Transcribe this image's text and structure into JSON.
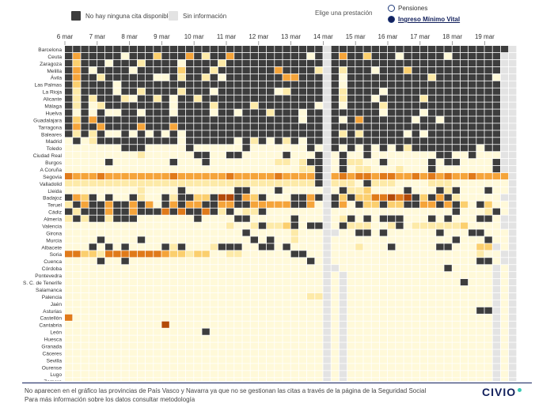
{
  "legend": {
    "no_slots_label": "No hay ninguna cita disponible",
    "no_slots_color": "#3d3d3d",
    "no_info_label": "Sin información",
    "no_info_color": "#e3e3e3"
  },
  "selector": {
    "title": "Elige una prestación",
    "options": [
      {
        "label": "Pensiones",
        "selected": false
      },
      {
        "label": "Ingreso Mínimo Vital",
        "selected": true
      }
    ]
  },
  "footer": {
    "note_line1": "No aparecen en el gráfico las provincias de País Vasco y Navarra ya que no se gestionan las citas a través de la página de la Seguridad Social",
    "note_line2": "Para más información sobre los datos consultar metodología",
    "logo": "CIVIO"
  },
  "chart_data": {
    "type": "heatmap",
    "x_labels": [
      {
        "label": "6 mar",
        "index": 0
      },
      {
        "label": "7 mar",
        "index": 4
      },
      {
        "label": "8 mar",
        "index": 8
      },
      {
        "label": "9 mar",
        "index": 12
      },
      {
        "label": "10 mar",
        "index": 16
      },
      {
        "label": "11 mar",
        "index": 20
      },
      {
        "label": "12 mar",
        "index": 24
      },
      {
        "label": "13 mar",
        "index": 28
      },
      {
        "label": "14 mar",
        "index": 32
      },
      {
        "label": "15 mar",
        "index": 36
      },
      {
        "label": "16 mar",
        "index": 40
      },
      {
        "label": "17 mar",
        "index": 44
      },
      {
        "label": "18 mar",
        "index": 48
      },
      {
        "label": "19 mar",
        "index": 52
      }
    ],
    "n_columns": 56,
    "no_info_columns": [
      32,
      55
    ],
    "rows": [
      "Barcelona",
      "Ceuta",
      "Zaragoza",
      "Melilla",
      "Ávila",
      "Las Palmas",
      "La Rioja",
      "Alicante",
      "Málaga",
      "Huelva",
      "Guadalajara",
      "Tarragona",
      "Baleares",
      "Madrid",
      "Toledo",
      "Ciudad Real",
      "Burgos",
      "A Coruña",
      "Segovia",
      "Valladolid",
      "Lleida",
      "Badajoz",
      "Teruel",
      "Cádiz",
      "Almería",
      "Valencia",
      "Girona",
      "Murcia",
      "Albacete",
      "Soria",
      "Cuenca",
      "Córdoba",
      "Pontevedra",
      "S. C. de Tenerife",
      "Salamanca",
      "Palencia",
      "Jaén",
      "Asturias",
      "Castellón",
      "Cantabria",
      "León",
      "Huesca",
      "Granada",
      "Cáceres",
      "Sevilla",
      "Ourense",
      "Lugo",
      "Zamora"
    ],
    "palette": [
      "#fff9d9",
      "#fdeaa8",
      "#fbcf6e",
      "#f5a43a",
      "#e07a1a",
      "#b34a08",
      "#6e2200"
    ],
    "no_slots_color": "#3d3d3d",
    "no_info_color": "#e3e3e3",
    "cells": [
      "XXXXXXXXXXXXXXXXXXXXXXXXXXXXXXXX_XXXXXXXXXXXXXXXXXXXXXX_",
      "X3XXXXX0XXX2XXX3X1XX3XXXXXXXXX0X_X3XX2XXX0XXXXX0XXXXXX_",
      "X2XXX0XXX1XXXX0XXXX1XXXXXXXXXXXX_XXXXXXXXXXXXXXXXXXXXX_",
      "X3X0XXXX0XXXXX2XXX1XXXXXXX3XXXX1_X1XXX0XXX2XXXXXXXXXXX_",
      "X3XX1XXXXXX00X1XX1X0XXXXXXX33XXX_X0XXXXXXXXXX1XXXXXXX0_",
      "X2XXXX0XXXXXXXXXXXXXXXXXXXXXXXXX_X0XXXXXXXXXXXXXXXXXXX_",
      "X1XXXX0XX1XXXX1XXX0XXXXXXX01XXXX_X1XXXX0XXXXXXXXXXXXXX_",
      "X1X1XXX10XX1X0XX1XXXXXXXXXXXXXXX_X1XXX0XXXXX1XXXXXXXXX_",
      "X1X01XXXXXXXX0XXXX1XXXX1XXXXXXX0_X0XXXX1XXXXXXXXXXXXXX_",
      "X0X0X00XX0XXX0XXXX0XX0XXX1XXX0XX_XXXXXX0XXXX0XXXXXXXXX_",
      "X2X3XXXXXXXXXXXXXXXXXXXXXXXXX0XX_X0X3XXXXXX0XX0XXXXXXX_",
      "X3XX3XXXX3XXX3XXXXXXXXXXXXXXXXXX_XXXXXXXXXXXXXXXXXXXXX_",
      "X1X1X00X0X0X0X0XXXXXXXXXXXXXXXXX_X1X1XXXXX0X0XXXXXXXXX_",
      "0X01XXXXXXXXXX0XXXXXX0X1X0X1X0XX_XXXXXXXXXXXXXXXXXXXXX_",
      "0000000XXX00000X000000X0000000X0_X0X0X0X0X1XXXXXXXX0XX_",
      "0000000001000000XX00XX00000X000X_0X00X00000000XX00X000_",
      "00000X0000000X000X000000001101XX_0X1100X00000X0XX0000X_",
      "0000000000000000000000000000011X_0X0110001000X0000000X_",
      "4333433333333433333343333343333X_3434434433434343343333_",
      "1111111111111111111111111111111X_1110X11100001110000000_",
      "00000000010000X000000XX000X00000_0X1120000X000X1X000X00_",
      "X32X0X00X100X1XX22X55X32X000XX3X_X2X2244545X2X3X100000_",
      "1X3XX3XX3X30X3X33XX33XX33333XX30_X30X22X22XX33X3X20X200_",
      "X1XXX3XX3XXX4X4XX4X1X011X0000000_000000000000000X0001X0_",
      "1X1XX1XXX0000000X0000XX00000X000_01X0X0XXX000X0X000XX0_",
      "000000000000000000001001X112X0XX_0X111001X011111120000_",
      "0000000000000000000000X0000010000_00XX0X000000X000XX000X_",
      "0000X0000X0000000000000X0X001000_000000000000000X000X00_",
      "000X0X0X0000X1X0001XXX00XX0X0000_0001000X00000XX00022_",
      "4422144444443221220011000000XX00_000000000000000000100_",
      "0000X00X0000000000000000000000X0_000000000000000000XX0_",
      "000000000000000000000000000000000_0000000000000X00000_",
      "0000000000000000000000000000000000_000000000000000000_",
      "0000000000000000000000000000000000_00000000000000X000_",
      "0000000000000000000000000000000000_000000000000000000_",
      "0000000000000000000000000000001100_000000000000000000_",
      "0000000000000000000000000000000000_000000000000000000_",
      "0000000000000000000000000000000000_0000000000000000XX_",
      "4000000000000000000000000000000000_000000000000000000_",
      "0000000000005000000000000000000000_000000000000000000_",
      "00000000000000000X0000000000000000_000000000000000000_",
      "0000000000000000000000000000000000_000000000000000000_",
      "0000000000000000000000000000000000_000000000000000000_",
      "0000000000000000000000000000000000_000000000000000000_",
      "0000000000000000000000000000000000_000000000000000000_",
      "0000000000000000000000000000000000_000000000000000000_",
      "0000000000000000000000000000000000_000000000000000000_",
      "0000000000000000000000000000000000_000000000000000000_"
    ]
  }
}
